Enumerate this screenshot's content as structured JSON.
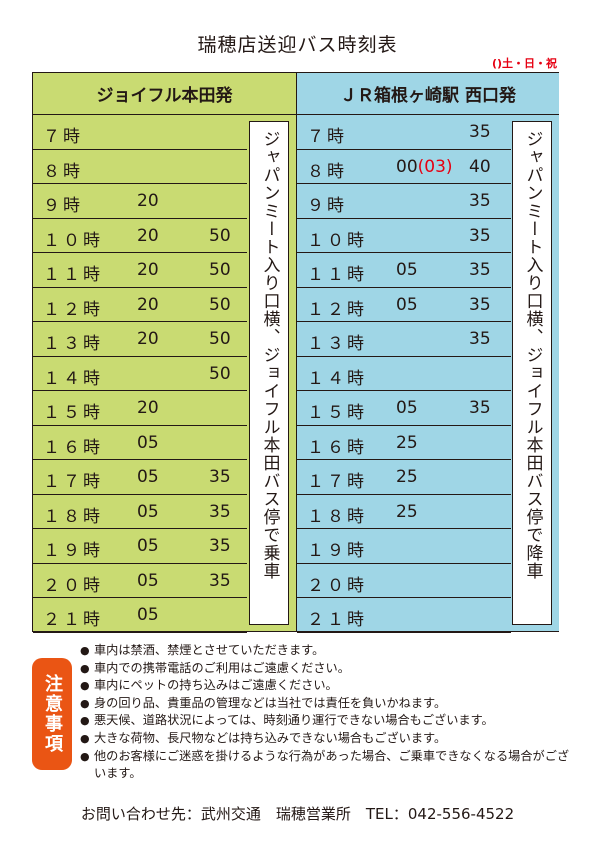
{
  "title": "瑞穂店送迎バス時刻表",
  "legend": "()土・日・祝",
  "left": {
    "header": "ジョイフル本田発",
    "rows": [
      {
        "hour": "７時",
        "m1": "",
        "m2": ""
      },
      {
        "hour": "８時",
        "m1": "",
        "m2": ""
      },
      {
        "hour": "９時",
        "m1": "20",
        "m2": ""
      },
      {
        "hour": "１０時",
        "m1": "20",
        "m2": "50"
      },
      {
        "hour": "１１時",
        "m1": "20",
        "m2": "50"
      },
      {
        "hour": "１２時",
        "m1": "20",
        "m2": "50"
      },
      {
        "hour": "１３時",
        "m1": "20",
        "m2": "50"
      },
      {
        "hour": "１４時",
        "m1": "",
        "m2": "50"
      },
      {
        "hour": "１５時",
        "m1": "20",
        "m2": ""
      },
      {
        "hour": "１６時",
        "m1": "05",
        "m2": ""
      },
      {
        "hour": "１７時",
        "m1": "05",
        "m2": "35"
      },
      {
        "hour": "１８時",
        "m1": "05",
        "m2": "35"
      },
      {
        "hour": "１９時",
        "m1": "05",
        "m2": "35"
      },
      {
        "hour": "２０時",
        "m1": "05",
        "m2": "35"
      },
      {
        "hour": "２１時",
        "m1": "05",
        "m2": ""
      }
    ],
    "stop_note": "ジャパンミート入り口横、ジョイフル本田バス停で乗車"
  },
  "right": {
    "header": "ＪＲ箱根ヶ崎駅 西口発",
    "rows": [
      {
        "hour": "７時",
        "m1": "",
        "m1_extra": "",
        "m2": "35"
      },
      {
        "hour": "８時",
        "m1": "00",
        "m1_extra": "(03)",
        "m2": "40"
      },
      {
        "hour": "９時",
        "m1": "",
        "m1_extra": "",
        "m2": "35"
      },
      {
        "hour": "１０時",
        "m1": "",
        "m1_extra": "",
        "m2": "35"
      },
      {
        "hour": "１１時",
        "m1": "05",
        "m1_extra": "",
        "m2": "35"
      },
      {
        "hour": "１２時",
        "m1": "05",
        "m1_extra": "",
        "m2": "35"
      },
      {
        "hour": "１３時",
        "m1": "",
        "m1_extra": "",
        "m2": "35"
      },
      {
        "hour": "１４時",
        "m1": "",
        "m1_extra": "",
        "m2": ""
      },
      {
        "hour": "１５時",
        "m1": "05",
        "m1_extra": "",
        "m2": "35"
      },
      {
        "hour": "１６時",
        "m1": "25",
        "m1_extra": "",
        "m2": ""
      },
      {
        "hour": "１７時",
        "m1": "25",
        "m1_extra": "",
        "m2": ""
      },
      {
        "hour": "１８時",
        "m1": "25",
        "m1_extra": "",
        "m2": ""
      },
      {
        "hour": "１９時",
        "m1": "",
        "m1_extra": "",
        "m2": ""
      },
      {
        "hour": "２０時",
        "m1": "",
        "m1_extra": "",
        "m2": ""
      },
      {
        "hour": "２１時",
        "m1": "",
        "m1_extra": "",
        "m2": ""
      }
    ],
    "stop_note": "ジャパンミート入り口横、ジョイフル本田バス停で降車"
  },
  "notice_label": "注意事項",
  "notes": [
    "車内は禁酒、禁煙とさせていただきます。",
    "車内での携帯電話のご利用はご遠慮ください。",
    "車内にペットの持ち込みはご遠慮ください。",
    "身の回り品、貴重品の管理などは当社では責任を負いかねます。",
    "悪天候、道路状況によっては、時刻通り運行できない場合もございます。",
    "大きな荷物、長尺物などは持ち込みできない場合もございます。",
    "他のお客様にご迷惑を掛けるような行為があった場合、ご乗車できなくなる場合がございます。"
  ],
  "contact": "お問い合わせ先：武州交通　瑞穂営業所　TEL：042-556-4522",
  "colors": {
    "left_bg": "#c9db72",
    "right_bg": "#9fd6e6",
    "accent_red": "#e60012",
    "notice_orange": "#ea5514"
  }
}
